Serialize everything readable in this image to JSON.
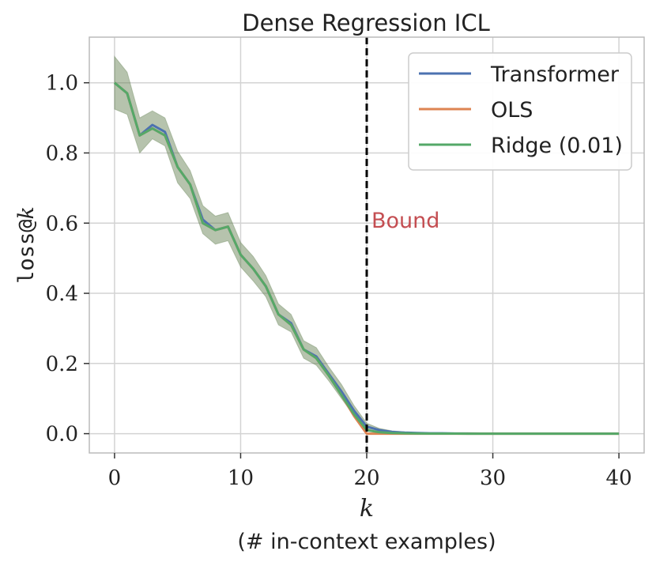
{
  "chart_data": {
    "type": "line",
    "title": "Dense Regression ICL",
    "xlabel_symbol": "k",
    "xlabel_sub": "(# in-context examples)",
    "ylabel_prefix": "loss@",
    "ylabel_italic": "k",
    "xlim": [
      -2,
      42
    ],
    "ylim": [
      -0.055,
      1.13
    ],
    "xticks": [
      0,
      10,
      20,
      30,
      40
    ],
    "xtick_labels": [
      "0",
      "10",
      "20",
      "30",
      "40"
    ],
    "yticks": [
      0.0,
      0.2,
      0.4,
      0.6,
      0.8,
      1.0
    ],
    "ytick_labels": [
      "0.0",
      "0.2",
      "0.4",
      "0.6",
      "0.8",
      "1.0"
    ],
    "grid": true,
    "legend_position": "top-right",
    "x": [
      0,
      1,
      2,
      3,
      4,
      5,
      6,
      7,
      8,
      9,
      10,
      11,
      12,
      13,
      14,
      15,
      16,
      17,
      18,
      19,
      20,
      21,
      22,
      23,
      24,
      25,
      26,
      27,
      28,
      29,
      30,
      31,
      32,
      33,
      34,
      35,
      36,
      37,
      38,
      39,
      40
    ],
    "series": [
      {
        "name": "Transformer",
        "color": "#4c72b0",
        "values": [
          1.0,
          0.97,
          0.85,
          0.88,
          0.86,
          0.76,
          0.71,
          0.61,
          0.58,
          0.59,
          0.51,
          0.47,
          0.42,
          0.34,
          0.315,
          0.24,
          0.22,
          0.17,
          0.12,
          0.065,
          0.02,
          0.01,
          0.005,
          0.003,
          0.002,
          0.001,
          0.001,
          0.0005,
          0.0005,
          0.0003,
          0.0003,
          0.0002,
          0.0002,
          0.0001,
          0.0001,
          0.0001,
          0.0001,
          0.0001,
          0.0001,
          0.0001,
          0.0001
        ]
      },
      {
        "name": "OLS",
        "color": "#dd8452",
        "values": [
          1.0,
          0.97,
          0.85,
          0.87,
          0.85,
          0.76,
          0.71,
          0.6,
          0.58,
          0.59,
          0.51,
          0.47,
          0.42,
          0.34,
          0.31,
          0.24,
          0.215,
          0.165,
          0.11,
          0.05,
          0.0,
          0,
          0,
          0,
          0,
          0,
          0,
          0,
          0,
          0,
          0,
          0,
          0,
          0,
          0,
          0,
          0,
          0,
          0,
          0,
          0
        ]
      },
      {
        "name": "Ridge (0.01)",
        "color": "#55a868",
        "values": [
          1.0,
          0.97,
          0.85,
          0.87,
          0.85,
          0.76,
          0.71,
          0.6,
          0.58,
          0.59,
          0.51,
          0.47,
          0.42,
          0.34,
          0.31,
          0.24,
          0.215,
          0.165,
          0.11,
          0.055,
          0.01,
          0.004,
          0.002,
          0.001,
          0.0005,
          0.0003,
          0.0002,
          0.0001,
          0,
          0,
          0,
          0,
          0,
          0,
          0,
          0,
          0,
          0,
          0,
          0,
          0
        ]
      }
    ],
    "band": {
      "fill": "#5d7a4a",
      "opacity": 0.45,
      "half_width": [
        0.075,
        0.06,
        0.05,
        0.04,
        0.04,
        0.045,
        0.04,
        0.04,
        0.04,
        0.04,
        0.035,
        0.035,
        0.03,
        0.03,
        0.025,
        0.025,
        0.025,
        0.02,
        0.02,
        0.015,
        0.01,
        0.005,
        0.003,
        0.002,
        0.001,
        0.001,
        0,
        0,
        0,
        0,
        0,
        0,
        0,
        0,
        0,
        0,
        0,
        0,
        0,
        0,
        0
      ]
    },
    "vline": {
      "x": 20,
      "color": "#000000",
      "label": "Bound",
      "label_color": "#c44e52",
      "label_y": 0.61
    }
  }
}
